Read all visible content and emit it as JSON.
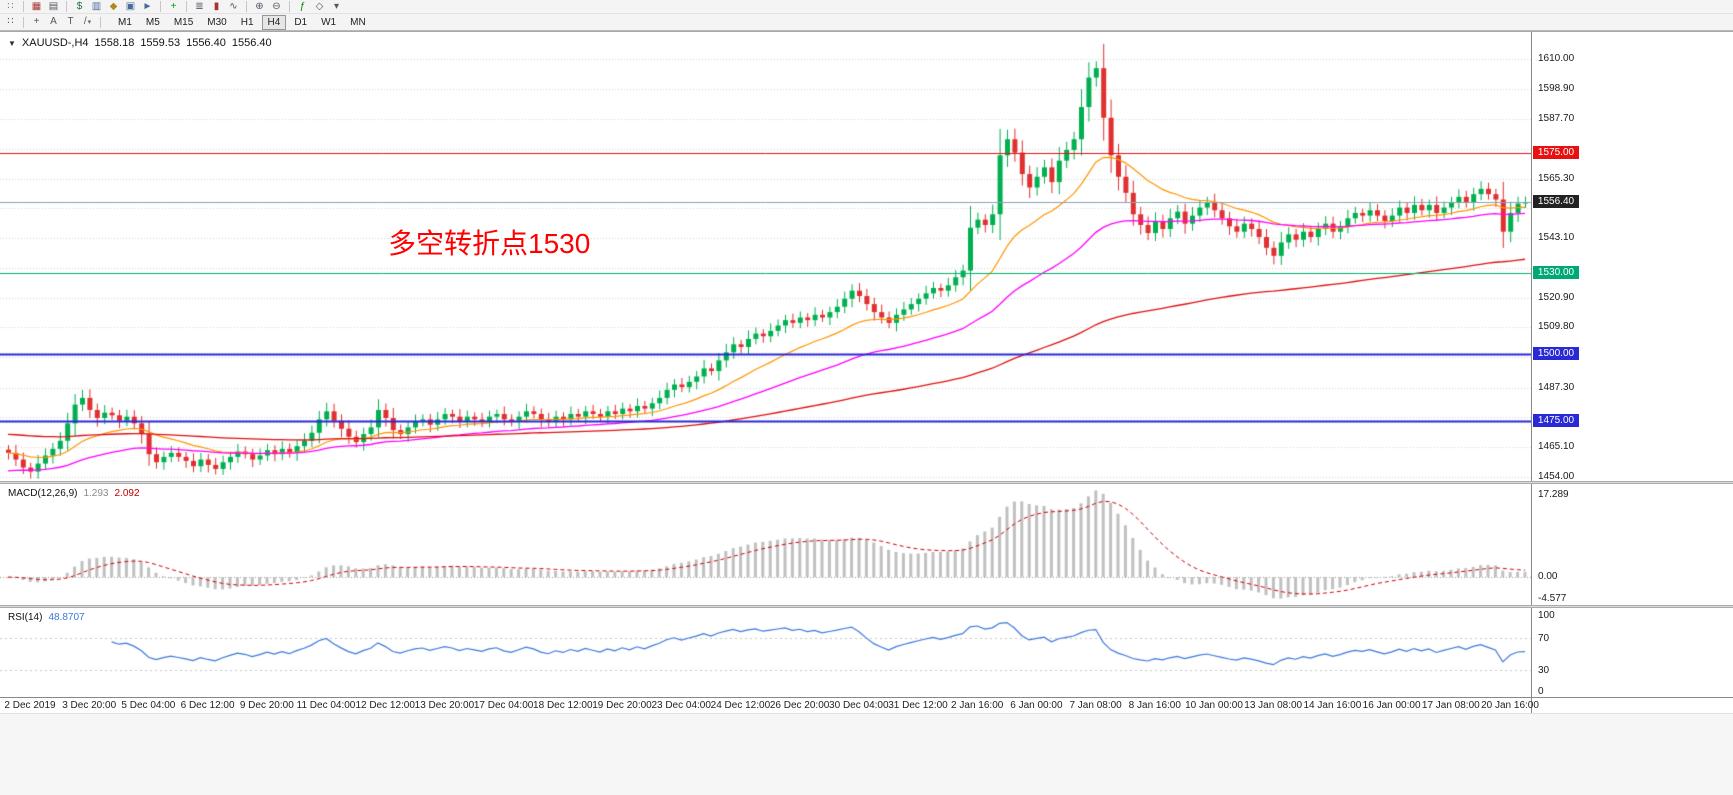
{
  "toolbar_top": {
    "groups": [
      [
        {
          "name": "toolbar-drag-handle-icon",
          "glyph": "∷",
          "color": "#808080"
        }
      ],
      [
        {
          "name": "new-chart-icon",
          "glyph": "▦",
          "color": "#a83434"
        },
        {
          "name": "profiles-icon",
          "glyph": "▤",
          "color": "#556"
        }
      ],
      [
        {
          "name": "market-watch-icon",
          "glyph": "$",
          "color": "#207040"
        },
        {
          "name": "data-window-icon",
          "glyph": "▥",
          "color": "#4a6a9a"
        },
        {
          "name": "navigator-icon",
          "glyph": "◆",
          "color": "#b08a20"
        },
        {
          "name": "terminal-icon",
          "glyph": "▣",
          "color": "#4a6a9a"
        },
        {
          "name": "strategy-tester-icon",
          "glyph": "►",
          "color": "#4a6a9a"
        }
      ],
      [
        {
          "name": "new-order-icon",
          "glyph": "+",
          "color": "#0a9a0a"
        }
      ],
      [
        {
          "name": "chart-bars-icon",
          "glyph": "≣",
          "color": "#556"
        },
        {
          "name": "chart-candles-icon",
          "glyph": "▮",
          "color": "#a83434"
        },
        {
          "name": "chart-line-icon",
          "glyph": "∿",
          "color": "#556"
        }
      ],
      [
        {
          "name": "zoom-in-icon",
          "glyph": "⊕",
          "color": "#556"
        },
        {
          "name": "zoom-out-icon",
          "glyph": "⊖",
          "color": "#556"
        }
      ],
      [
        {
          "name": "indicators-icon",
          "glyph": "ƒ",
          "color": "#0a7a0a"
        },
        {
          "name": "objects-icon",
          "glyph": "◇",
          "color": "#556"
        },
        {
          "name": "templates-icon",
          "glyph": "▾",
          "color": "#556"
        }
      ]
    ]
  },
  "toolbar_tools": {
    "handle_glyph": "∷",
    "tools": [
      {
        "name": "crosshair-tool-icon",
        "glyph": "+"
      },
      {
        "name": "text-tool-icon",
        "glyph": "A"
      },
      {
        "name": "text-label-tool-icon",
        "glyph": "T"
      },
      {
        "name": "draw-tools-icon",
        "glyph": "/",
        "dropdown": "▾"
      }
    ],
    "timeframes": [
      {
        "label": "M1"
      },
      {
        "label": "M5"
      },
      {
        "label": "M15"
      },
      {
        "label": "M30"
      },
      {
        "label": "H1"
      },
      {
        "label": "H4",
        "active": true
      },
      {
        "label": "D1"
      },
      {
        "label": "W1"
      },
      {
        "label": "MN"
      }
    ]
  },
  "chart": {
    "title": {
      "collapse_glyph": "▼",
      "symbol": "XAUUSD-,H4",
      "open": "1558.18",
      "high": "1559.53",
      "low": "1556.40",
      "close": "1556.40"
    },
    "annotation": {
      "text": "多空转折点1530",
      "color": "#ff0000"
    }
  },
  "chart_data": {
    "type": "candlestick",
    "symbol": "XAUUSD-",
    "timeframe": "H4",
    "title": "XAUUSD-,H4 1558.18 1559.53 1556.40 1556.40",
    "bull_color": "#00b050",
    "bear_color": "#e03030",
    "price_range": {
      "min": 1452.5,
      "max": 1620
    },
    "closes": [
      1463.0,
      1460.5,
      1457.5,
      1456.0,
      1459.0,
      1462.0,
      1464.5,
      1467.5,
      1474.0,
      1481.0,
      1483.5,
      1479.0,
      1476.0,
      1478.0,
      1477.0,
      1475.0,
      1476.5,
      1474.0,
      1470.0,
      1462.5,
      1459.5,
      1461.5,
      1463.0,
      1461.5,
      1460.0,
      1458.0,
      1460.5,
      1458.5,
      1457.0,
      1459.5,
      1461.5,
      1463.5,
      1462.5,
      1460.5,
      1462.0,
      1464.0,
      1462.5,
      1464.5,
      1463.0,
      1465.5,
      1467.5,
      1470.5,
      1475.5,
      1478.5,
      1475.0,
      1472.0,
      1469.0,
      1467.0,
      1470.0,
      1472.5,
      1479.0,
      1476.0,
      1471.5,
      1470.0,
      1472.5,
      1474.5,
      1475.5,
      1473.5,
      1475.5,
      1477.5,
      1476.5,
      1474.5,
      1476.5,
      1475.5,
      1474.5,
      1476.5,
      1477.5,
      1475.5,
      1474.5,
      1476.5,
      1478.5,
      1477.5,
      1475.5,
      1474.5,
      1476.5,
      1475.5,
      1477.5,
      1476.5,
      1478.5,
      1477.5,
      1476.5,
      1478.5,
      1477.5,
      1479.5,
      1478.5,
      1480.5,
      1479.5,
      1481.5,
      1483.5,
      1486.5,
      1488.5,
      1487.5,
      1489.5,
      1491.5,
      1494.5,
      1493.5,
      1497.5,
      1500.5,
      1503.5,
      1502.5,
      1505.5,
      1507.5,
      1506.5,
      1508.5,
      1510.5,
      1512.5,
      1511.5,
      1513.5,
      1512.5,
      1514.5,
      1513.5,
      1515.5,
      1517.5,
      1520.5,
      1523.5,
      1521.5,
      1518.5,
      1515.5,
      1513.5,
      1511.5,
      1514.5,
      1516.5,
      1518.5,
      1520.5,
      1522.5,
      1524.5,
      1523.5,
      1525.5,
      1528.5,
      1531.0,
      1547.0,
      1550.0,
      1548.0,
      1552.0,
      1574.0,
      1580.0,
      1575.0,
      1567.0,
      1562.0,
      1566.0,
      1569.5,
      1564.0,
      1572.0,
      1576.0,
      1580.0,
      1592.0,
      1603.0,
      1606.5,
      1588.0,
      1574.0,
      1566.0,
      1560.0,
      1552.0,
      1548.0,
      1545.0,
      1549.5,
      1546.5,
      1550.5,
      1553.0,
      1548.5,
      1551.5,
      1554.5,
      1556.5,
      1553.5,
      1550.5,
      1547.5,
      1545.5,
      1548.5,
      1546.5,
      1543.5,
      1539.5,
      1536.5,
      1541.5,
      1544.5,
      1542.5,
      1545.5,
      1543.5,
      1546.5,
      1548.5,
      1545.5,
      1547.5,
      1550.5,
      1552.5,
      1551.5,
      1553.5,
      1551.5,
      1549.5,
      1551.5,
      1554.5,
      1552.5,
      1555.5,
      1553.5,
      1555.5,
      1552.5,
      1554.5,
      1556.5,
      1558.5,
      1556.5,
      1559.5,
      1561.5,
      1559.5,
      1557.5,
      1545.5,
      1552.5,
      1556.0,
      1556.4
    ],
    "x_labels": [
      "2 Dec 2019",
      "3 Dec 20:00",
      "5 Dec 04:00",
      "6 Dec 12:00",
      "9 Dec 20:00",
      "11 Dec 04:00",
      "12 Dec 12:00",
      "13 Dec 20:00",
      "17 Dec 04:00",
      "18 Dec 12:00",
      "19 Dec 20:00",
      "23 Dec 04:00",
      "24 Dec 12:00",
      "26 Dec 20:00",
      "30 Dec 04:00",
      "31 Dec 12:00",
      "2 Jan 16:00",
      "6 Jan 00:00",
      "7 Jan 08:00",
      "8 Jan 16:00",
      "10 Jan 00:00",
      "13 Jan 08:00",
      "14 Jan 16:00",
      "16 Jan 00:00",
      "17 Jan 08:00",
      "20 Jan 16:00"
    ],
    "y_grid": [
      1610.0,
      1598.9,
      1587.7,
      1576.5,
      1565.3,
      1554.2,
      1543.1,
      1531.9,
      1520.9,
      1509.8,
      1498.6,
      1487.3,
      1476.2,
      1465.1,
      1454.0
    ],
    "y_labels_visible": [
      "1610.00",
      "1598.90",
      "1587.70",
      "1565.30",
      "1543.10",
      "1520.90",
      "1509.80",
      "1487.30",
      "1465.10",
      "1454.00"
    ],
    "moving_averages": [
      {
        "name": "ema-fast",
        "period": 18,
        "color": "#ff9500",
        "width": 1.2
      },
      {
        "name": "ema-medium",
        "period": 45,
        "color": "#ff00ff",
        "width": 1.3,
        "seed": 1456
      },
      {
        "name": "ema-slow",
        "period": 130,
        "color": "#dd1111",
        "width": 1.3,
        "seed": 1470
      }
    ],
    "levels": [
      {
        "price": 1575.0,
        "label": "1575.00",
        "line_color": "#e81010",
        "tag_bg": "#e81010",
        "width": 1,
        "role": "resistance-line"
      },
      {
        "price": 1556.4,
        "label": "1556.40",
        "line_color": "#8ca0b4",
        "tag_bg": "#222222",
        "width": 1,
        "role": "current-price"
      },
      {
        "price": 1530.0,
        "label": "1530.00",
        "line_color": "#00b26b",
        "tag_bg": "#00a878",
        "width": 1,
        "role": "pivot-line"
      },
      {
        "price": 1500.0,
        "label": "1500.00",
        "line_color": "#2929d6",
        "tag_bg": "#2929d6",
        "width": 2,
        "role": "support-line"
      },
      {
        "price": 1475.0,
        "label": "1475.00",
        "line_color": "#2929d6",
        "tag_bg": "#2929d6",
        "width": 2,
        "role": "support-line"
      }
    ]
  },
  "macd_panel": {
    "label": "MACD(12,26,9)",
    "value1": "1.293",
    "value2": "2.092",
    "params": {
      "fast": 12,
      "slow": 26,
      "signal": 9
    },
    "hist_color": "#c0c0c0",
    "signal_color": "#d00000",
    "axis": [
      {
        "v": 17.289,
        "label": "17.289"
      },
      {
        "v": 0,
        "label": "0.00"
      },
      {
        "v": -4.577,
        "label": "-4.577"
      }
    ]
  },
  "rsi_panel": {
    "label": "RSI(14)",
    "value": "48.8707",
    "period": 14,
    "line_color": "#3c78dc",
    "levels": [
      70,
      30
    ],
    "axis": [
      {
        "v": 100,
        "label": "100"
      },
      {
        "v": 70,
        "label": "70"
      },
      {
        "v": 30,
        "label": "30"
      },
      {
        "v": 0,
        "label": "0"
      }
    ]
  }
}
